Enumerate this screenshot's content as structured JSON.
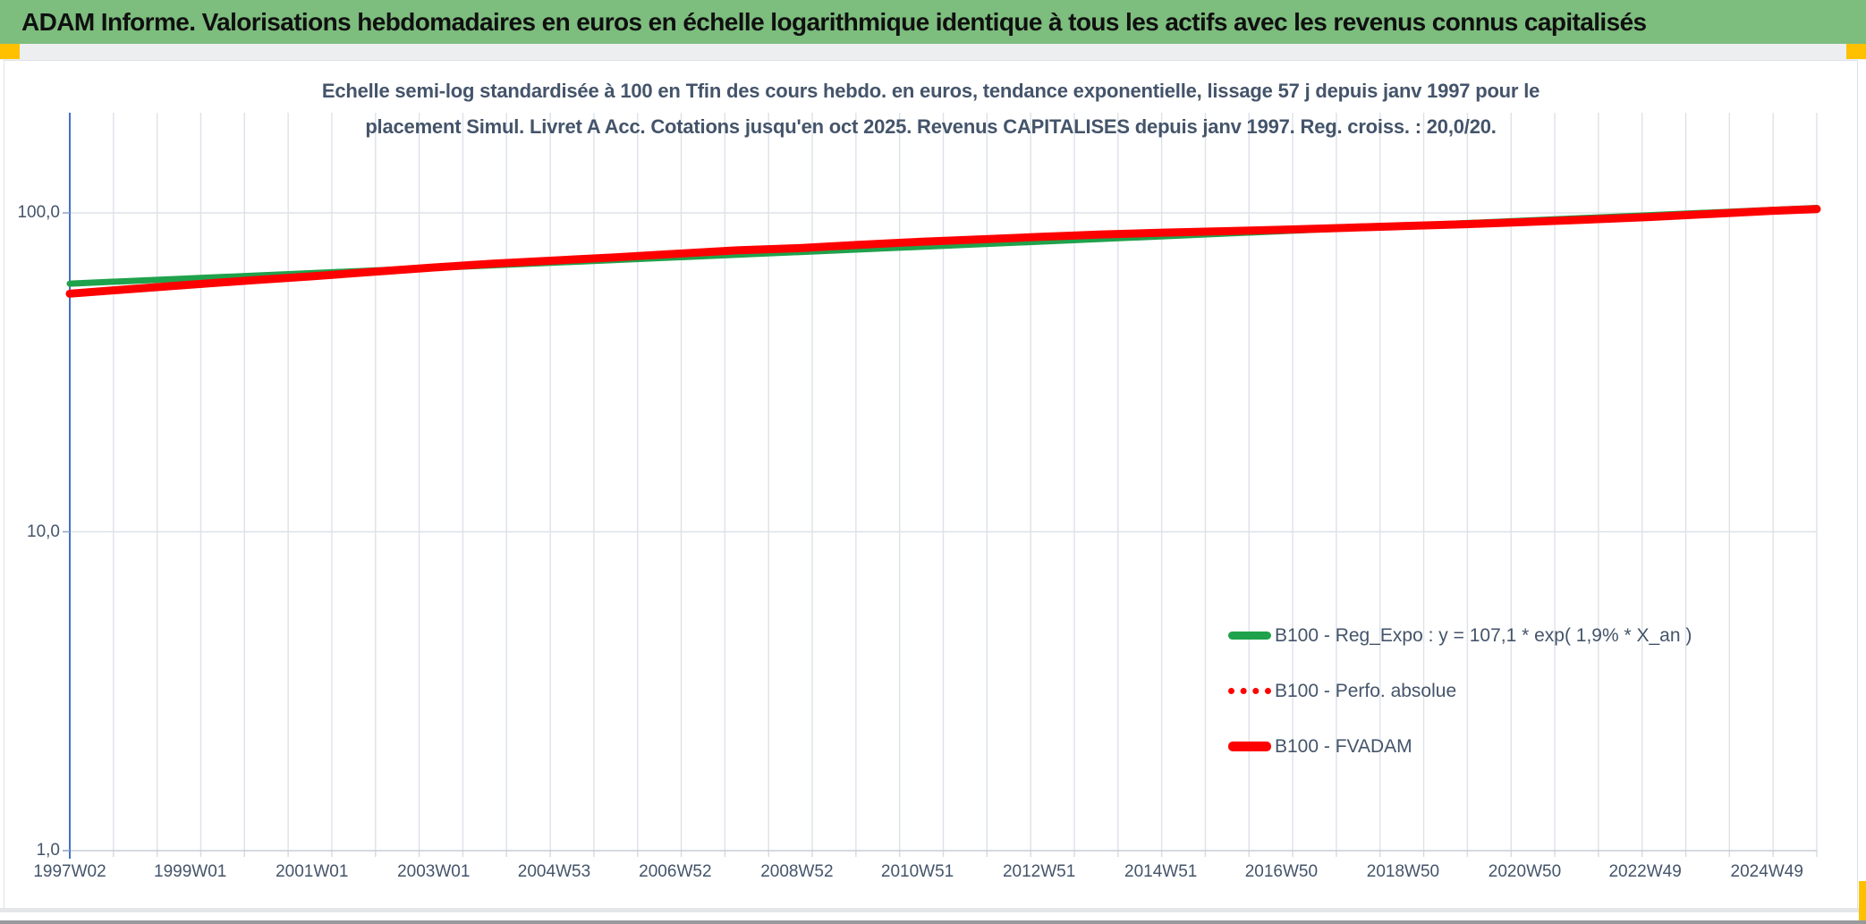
{
  "header": {
    "title": "ADAM Informe. Valorisations hebdomadaires en euros en échelle logarithmique identique à tous les actifs avec les revenus connus capitalisés"
  },
  "colors": {
    "header_bg": "#7DBD7E",
    "accent_squares": "#FFC000",
    "title_text": "#44546A",
    "green_line": "#1FA24C",
    "red_line": "#FF0000",
    "axis_blue": "#4472C4",
    "gridline": "#DDE2E9"
  },
  "chart_data": {
    "type": "line",
    "title_line1": "Echelle semi-log standardisée à 100 en Tfin des cours hebdo. en euros, tendance exponentielle, lissage 57 j depuis janv 1997 pour le",
    "title_line2": "placement Simul. Livret A Acc. Cotations jusqu'en oct 2025. Revenus CAPITALISES depuis janv 1997. Reg. croiss. : 20,0/20.",
    "y_scale": "log",
    "ylim": [
      1,
      210
    ],
    "x_domain": [
      1997.04,
      2025.75
    ],
    "grid": "on",
    "legend_position": "inside-right-bottom",
    "y_axis": {
      "tick_labels": [
        "100,0",
        "10,0",
        "1,0"
      ],
      "tick_values": [
        100,
        10,
        1
      ]
    },
    "x_axis": {
      "labels": [
        "1997W02",
        "1999W01",
        "2001W01",
        "2003W01",
        "2004W53",
        "2006W52",
        "2008W52",
        "2010W51",
        "2012W51",
        "2014W51",
        "2016W50",
        "2018W50",
        "2020W50",
        "2022W49",
        "2024W49"
      ],
      "label_x_years": [
        1997.04,
        1999.02,
        2001.02,
        2003.02,
        2005.0,
        2006.99,
        2008.99,
        2010.97,
        2012.97,
        2014.97,
        2016.95,
        2018.95,
        2020.95,
        2022.93,
        2024.93
      ]
    },
    "series": [
      {
        "name": "B100 - Reg_Expo : y = 107,1 * exp( 1,9% *  X_an )",
        "color": "#1FA24C",
        "style": "solid",
        "width": 7,
        "points": [
          [
            1997.04,
            60.0
          ],
          [
            2025.75,
            103.6
          ]
        ]
      },
      {
        "name": "B100 - Perfo. absolue",
        "color": "#FF0000",
        "style": "dotted",
        "width": 7,
        "points": [
          [
            1997.04,
            55.8
          ],
          [
            1998,
            57.6
          ],
          [
            1999,
            59.5
          ],
          [
            2000,
            61.4
          ],
          [
            2001,
            63.2
          ],
          [
            2002,
            65.3
          ],
          [
            2003,
            67.4
          ],
          [
            2004,
            69.3
          ],
          [
            2005,
            70.9
          ],
          [
            2006,
            72.5
          ],
          [
            2007,
            74.4
          ],
          [
            2008,
            76.3
          ],
          [
            2009,
            77.5
          ],
          [
            2010,
            79.4
          ],
          [
            2011,
            81.1
          ],
          [
            2012,
            82.6
          ],
          [
            2013,
            84.1
          ],
          [
            2014,
            85.6
          ],
          [
            2015,
            86.7
          ],
          [
            2016,
            87.6
          ],
          [
            2017,
            88.6
          ],
          [
            2018,
            89.8
          ],
          [
            2019,
            91.0
          ],
          [
            2020,
            92.2
          ],
          [
            2021,
            93.7
          ],
          [
            2022,
            95.3
          ],
          [
            2023,
            97.1
          ],
          [
            2024,
            99.2
          ],
          [
            2025,
            101.4
          ],
          [
            2025.75,
            102.8
          ]
        ]
      },
      {
        "name": "B100 - FVADAM",
        "color": "#FF0000",
        "style": "solid",
        "width": 9,
        "points": [
          [
            1997.04,
            55.8
          ],
          [
            1998,
            57.6
          ],
          [
            1999,
            59.5
          ],
          [
            2000,
            61.4
          ],
          [
            2001,
            63.2
          ],
          [
            2002,
            65.3
          ],
          [
            2003,
            67.4
          ],
          [
            2004,
            69.3
          ],
          [
            2005,
            70.9
          ],
          [
            2006,
            72.5
          ],
          [
            2007,
            74.4
          ],
          [
            2008,
            76.3
          ],
          [
            2009,
            77.5
          ],
          [
            2010,
            79.4
          ],
          [
            2011,
            81.1
          ],
          [
            2012,
            82.6
          ],
          [
            2013,
            84.1
          ],
          [
            2014,
            85.6
          ],
          [
            2015,
            86.7
          ],
          [
            2016,
            87.6
          ],
          [
            2017,
            88.6
          ],
          [
            2018,
            89.8
          ],
          [
            2019,
            91.0
          ],
          [
            2020,
            92.2
          ],
          [
            2021,
            93.7
          ],
          [
            2022,
            95.3
          ],
          [
            2023,
            97.1
          ],
          [
            2024,
            99.2
          ],
          [
            2025,
            101.4
          ],
          [
            2025.75,
            102.8
          ]
        ]
      }
    ]
  }
}
